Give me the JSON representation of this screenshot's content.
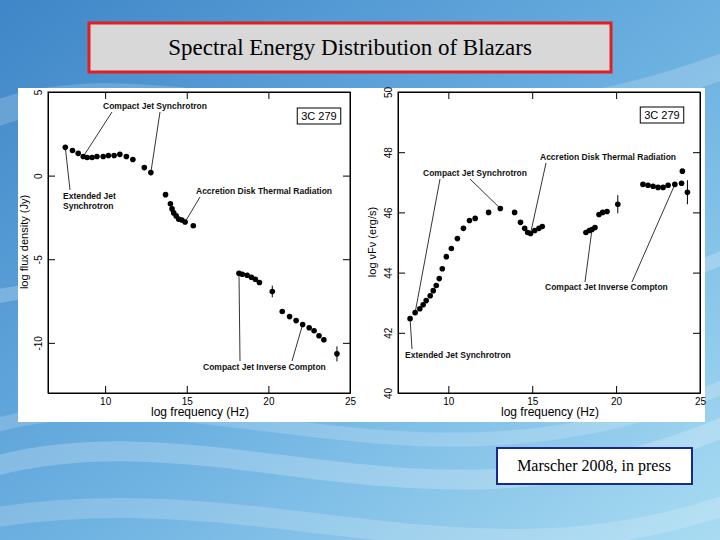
{
  "title": "Spectral Energy Distribution of Blazars",
  "citation": "Marscher 2008, in press",
  "chart_data": [
    {
      "type": "scatter",
      "panel_label": "3C 279",
      "xlabel": "log frequency (Hz)",
      "ylabel": "log flux density (Jy)",
      "xlim": [
        6.5,
        25
      ],
      "ylim": [
        -13,
        5
      ],
      "xticks": [
        10,
        15,
        20,
        25
      ],
      "yticks": [
        -10,
        -5,
        0,
        5
      ],
      "marker": "circle",
      "color": "#000000",
      "x": [
        7.56,
        8.0,
        8.35,
        8.66,
        8.9,
        9.2,
        9.5,
        9.88,
        10.2,
        10.55,
        10.9,
        11.3,
        11.7,
        12.4,
        12.8,
        13.7,
        14.0,
        14.1,
        14.2,
        14.35,
        14.5,
        14.7,
        14.9,
        15.4,
        18.2,
        18.4,
        18.7,
        18.96,
        19.2,
        19.45,
        20.24,
        20.85,
        21.3,
        21.7,
        22.1,
        22.5,
        22.8,
        23.1,
        23.4,
        24.2
      ],
      "values": [
        1.69,
        1.5,
        1.33,
        1.14,
        1.08,
        1.08,
        1.14,
        1.14,
        1.2,
        1.2,
        1.27,
        1.14,
        0.96,
        0.48,
        0.18,
        -1.14,
        -1.69,
        -1.99,
        -2.23,
        -2.41,
        -2.6,
        -2.65,
        -2.77,
        -3.0,
        -5.84,
        -5.9,
        -5.96,
        -6.08,
        -6.2,
        -6.39,
        -6.93,
        -8.13,
        -8.43,
        -8.67,
        -8.9,
        -9.1,
        -9.28,
        -9.58,
        -9.82,
        -10.66
      ],
      "errors": [
        null,
        null,
        null,
        null,
        null,
        null,
        null,
        null,
        null,
        null,
        null,
        null,
        null,
        null,
        null,
        null,
        null,
        null,
        null,
        null,
        null,
        null,
        null,
        null,
        null,
        null,
        null,
        null,
        null,
        null,
        0.35,
        null,
        null,
        null,
        null,
        null,
        null,
        null,
        null,
        0.45
      ],
      "annotations": [
        {
          "lines": [
            "Compact Jet Synchrotron"
          ]
        },
        {
          "lines": [
            "Extended Jet",
            "Synchrotron"
          ]
        },
        {
          "lines": [
            "Accretion Disk Thermal Radiation"
          ]
        },
        {
          "lines": [
            "Compact Jet Inverse Compton"
          ]
        }
      ]
    },
    {
      "type": "scatter",
      "panel_label": "3C 279",
      "xlabel": "log frequency (Hz)",
      "ylabel": "log νFν (erg/s)",
      "xlim": [
        7,
        25
      ],
      "ylim": [
        40,
        50
      ],
      "xticks": [
        10,
        15,
        20,
        25
      ],
      "yticks": [
        40,
        42,
        44,
        46,
        48,
        50
      ],
      "marker": "circle",
      "color": "#000000",
      "x": [
        7.72,
        8.02,
        8.3,
        8.5,
        8.68,
        8.92,
        9.1,
        9.28,
        9.46,
        9.64,
        9.88,
        10.18,
        10.54,
        10.9,
        11.26,
        11.6,
        12.4,
        13.1,
        13.95,
        14.3,
        14.55,
        14.73,
        14.9,
        15.15,
        15.4,
        15.6,
        18.2,
        18.4,
        18.56,
        18.74,
        18.98,
        19.2,
        19.46,
        20.1,
        21.6,
        21.9,
        22.2,
        22.5,
        22.8,
        23.1,
        23.5,
        23.9,
        23.95,
        24.25
      ],
      "values": [
        42.47,
        42.67,
        42.8,
        42.93,
        43.07,
        43.23,
        43.4,
        43.57,
        43.8,
        44.13,
        44.53,
        44.8,
        45.13,
        45.47,
        45.73,
        45.8,
        46.0,
        46.13,
        46.0,
        45.67,
        45.47,
        45.33,
        45.3,
        45.4,
        45.47,
        45.53,
        45.33,
        45.4,
        45.43,
        45.5,
        45.93,
        46.0,
        46.03,
        46.27,
        46.93,
        46.9,
        46.87,
        46.83,
        46.83,
        46.9,
        46.93,
        46.97,
        47.37,
        46.67
      ],
      "errors": [
        null,
        null,
        null,
        null,
        null,
        null,
        null,
        null,
        null,
        null,
        null,
        null,
        null,
        null,
        null,
        null,
        null,
        null,
        null,
        null,
        null,
        null,
        null,
        null,
        null,
        null,
        null,
        null,
        null,
        null,
        null,
        null,
        null,
        0.3,
        null,
        null,
        null,
        null,
        null,
        null,
        null,
        null,
        null,
        0.4
      ],
      "annotations": [
        {
          "lines": [
            "Compact Jet Synchrotron"
          ]
        },
        {
          "lines": [
            "Extended Jet Synchrotron"
          ]
        },
        {
          "lines": [
            "Accretion Disk Thermal Radiation"
          ]
        },
        {
          "lines": [
            "Compact Jet Inverse Compton"
          ]
        }
      ]
    }
  ]
}
